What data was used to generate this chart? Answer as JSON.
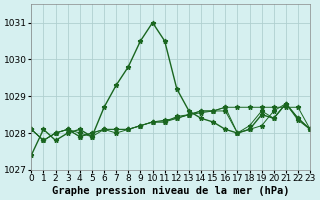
{
  "title": "Graphe pression niveau de la mer (hPa)",
  "background_color": "#d6f0f0",
  "grid_color": "#b0d0d0",
  "line_color": "#1a6620",
  "xlim": [
    0,
    23
  ],
  "ylim": [
    1027,
    1031.5
  ],
  "yticks": [
    1027,
    1028,
    1029,
    1030,
    1031
  ],
  "xticks": [
    0,
    1,
    2,
    3,
    4,
    5,
    6,
    7,
    8,
    9,
    10,
    11,
    12,
    13,
    14,
    15,
    16,
    17,
    18,
    19,
    20,
    21,
    22,
    23
  ],
  "series": [
    [
      1027.4,
      1028.1,
      1027.8,
      1028.0,
      1028.1,
      1027.9,
      1028.7,
      1029.3,
      1029.8,
      1030.5,
      1031.0,
      1030.5,
      1029.2,
      1028.6,
      1028.4,
      1028.3,
      1028.1,
      1028.0,
      1028.1,
      1028.5,
      1028.4,
      1028.8,
      1028.4,
      1028.1
    ],
    [
      1028.1,
      1027.8,
      1028.0,
      1028.1,
      1027.9,
      1028.0,
      1028.1,
      1028.1,
      1028.1,
      1028.2,
      1028.3,
      1028.3,
      1028.4,
      1028.5,
      1028.6,
      1028.6,
      1028.7,
      1028.7,
      1028.7,
      1028.7,
      1028.7,
      1028.7,
      1028.7,
      1028.1
    ],
    [
      1028.1,
      1027.8,
      1028.0,
      1028.1,
      1027.9,
      1028.0,
      1028.1,
      1028.1,
      1028.1,
      1028.2,
      1028.3,
      1028.35,
      1028.4,
      1028.5,
      1028.55,
      1028.6,
      1028.6,
      1028.0,
      1028.1,
      1028.2,
      1028.6,
      1028.8,
      1028.4,
      1028.1
    ],
    [
      1028.1,
      1027.8,
      1028.0,
      1028.1,
      1028.0,
      1027.9,
      1028.1,
      1028.0,
      1028.1,
      1028.2,
      1028.3,
      1028.3,
      1028.45,
      1028.5,
      1028.6,
      1028.6,
      1028.7,
      1028.0,
      1028.2,
      1028.6,
      1028.4,
      1028.8,
      1028.35,
      1028.1
    ]
  ],
  "xlabel_fontsize": 7.5,
  "tick_fontsize": 6.5,
  "label_fontweight": "bold"
}
